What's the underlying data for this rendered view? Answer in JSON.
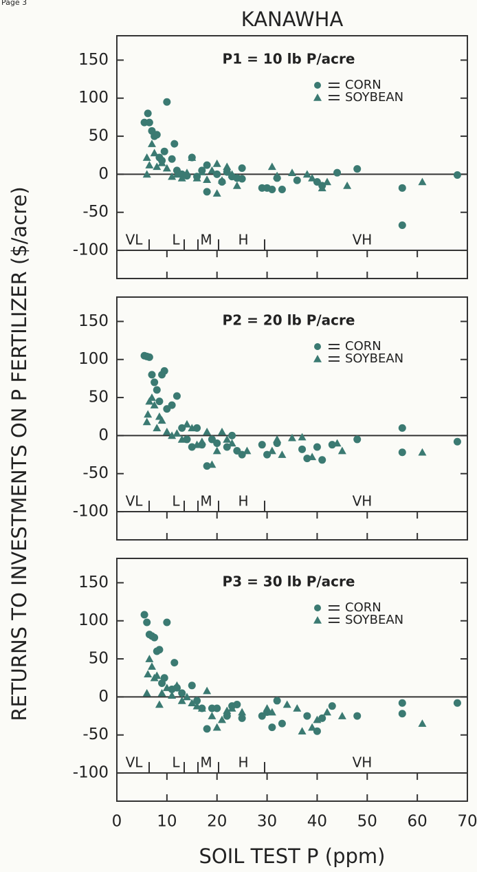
{
  "page_label": "Page 3",
  "chart_data": [
    {
      "type": "scatter",
      "title": "KANAWHA",
      "subtitle": "P1 = 10 lb P/acre",
      "y_label": "RETURNS TO INVESTMENTS ON P FERTILIZER ($/acre)",
      "class_labels": [
        "VL",
        "L",
        "M",
        "H",
        "VH"
      ],
      "xlim": [
        0,
        70
      ],
      "xticks": [
        0,
        10,
        20,
        30,
        40,
        50,
        60,
        70
      ],
      "ylim": [
        -137,
        182
      ],
      "yticks": [
        -100,
        -50,
        0,
        50,
        100,
        150
      ],
      "series": [
        {
          "name": "CORN",
          "marker": "circle",
          "color": "#3b7a72",
          "x": [
            5.5,
            6.2,
            6.5,
            7,
            7.5,
            8,
            8.5,
            9,
            9.5,
            10,
            11,
            11.5,
            12,
            13,
            14,
            15,
            16,
            17,
            18,
            18,
            20,
            21,
            22,
            23,
            24,
            25,
            25,
            29,
            30,
            31,
            32,
            33,
            36,
            40,
            41,
            44,
            48,
            57,
            57,
            68
          ],
          "values": [
            68,
            80,
            68,
            57,
            50,
            52,
            22,
            18,
            30,
            95,
            20,
            40,
            5,
            0,
            -2,
            22,
            -3,
            5,
            -23,
            12,
            0,
            -10,
            3,
            -3,
            -5,
            8,
            -6,
            -18,
            -18,
            -20,
            -5,
            -20,
            -8,
            -10,
            -15,
            2,
            7,
            -18,
            -67,
            -1
          ]
        },
        {
          "name": "SOYBEAN",
          "marker": "triangle",
          "color": "#3b7a72",
          "x": [
            6,
            6,
            6.5,
            7,
            7.5,
            8,
            9,
            10,
            11,
            12,
            13,
            14,
            15,
            16,
            17,
            18,
            19,
            20,
            20,
            21,
            22,
            23,
            24,
            31,
            32,
            35,
            38,
            39,
            41,
            42,
            46,
            61
          ],
          "values": [
            0,
            22,
            12,
            40,
            28,
            10,
            15,
            8,
            -3,
            0,
            -5,
            2,
            22,
            -5,
            3,
            -7,
            5,
            -25,
            14,
            -8,
            10,
            0,
            -15,
            10,
            -2,
            2,
            0,
            -5,
            -18,
            -10,
            -15,
            -10
          ]
        }
      ]
    },
    {
      "type": "scatter",
      "subtitle": "P2 = 20 lb P/acre",
      "class_labels": [
        "VL",
        "L",
        "M",
        "H",
        "VH"
      ],
      "xlim": [
        0,
        70
      ],
      "xticks": [
        0,
        10,
        20,
        30,
        40,
        50,
        60,
        70
      ],
      "ylim": [
        -137,
        182
      ],
      "yticks": [
        -100,
        -50,
        0,
        50,
        100,
        150
      ],
      "series": [
        {
          "name": "CORN",
          "marker": "circle",
          "color": "#3b7a72",
          "x": [
            5.5,
            6,
            6.5,
            7,
            7.5,
            8,
            8.5,
            9,
            9.5,
            10,
            11,
            12,
            13,
            14,
            15,
            16,
            17,
            18,
            19,
            20,
            22,
            23,
            24,
            25,
            29,
            30,
            32,
            37,
            38,
            40,
            41,
            43,
            48,
            57,
            57,
            68
          ],
          "values": [
            105,
            104,
            103,
            80,
            70,
            60,
            45,
            80,
            85,
            35,
            40,
            52,
            10,
            -5,
            -15,
            10,
            -12,
            -40,
            -5,
            -10,
            -15,
            0,
            -20,
            -25,
            -12,
            -25,
            -10,
            -18,
            -30,
            -15,
            -32,
            -12,
            -5,
            10,
            -22,
            -8
          ]
        },
        {
          "name": "SOYBEAN",
          "marker": "triangle",
          "color": "#3b7a72",
          "x": [
            6,
            6.2,
            6.5,
            7,
            7.5,
            8,
            8.5,
            9,
            10,
            11,
            12,
            13,
            14,
            15,
            16,
            17,
            18,
            19,
            20,
            21,
            22,
            23,
            26,
            31,
            32,
            33,
            35,
            37,
            39,
            44,
            45,
            61
          ],
          "values": [
            18,
            28,
            45,
            50,
            40,
            10,
            25,
            20,
            5,
            0,
            3,
            -5,
            15,
            10,
            -12,
            -8,
            5,
            -38,
            -20,
            5,
            -5,
            -10,
            -20,
            -20,
            -5,
            -25,
            -3,
            -2,
            -28,
            -10,
            -20,
            -22
          ]
        }
      ]
    },
    {
      "type": "scatter",
      "subtitle": "P3 = 30 lb P/acre",
      "x_label": "SOIL TEST P (ppm)",
      "class_labels": [
        "VL",
        "L",
        "M",
        "H",
        "VH"
      ],
      "xlim": [
        0,
        70
      ],
      "xticks": [
        0,
        10,
        20,
        30,
        40,
        50,
        60,
        70
      ],
      "ylim": [
        -137,
        182
      ],
      "yticks": [
        -100,
        -50,
        0,
        50,
        100,
        150
      ],
      "series": [
        {
          "name": "CORN",
          "marker": "circle",
          "color": "#3b7a72",
          "x": [
            5.5,
            6,
            6.5,
            7,
            7.5,
            8,
            8.5,
            9,
            9.5,
            10,
            11,
            11.5,
            12,
            13,
            15,
            16,
            17,
            18,
            19,
            20,
            22,
            23,
            24,
            25,
            29,
            30,
            31,
            32,
            33,
            38,
            40,
            41,
            43,
            48,
            57,
            57,
            68
          ],
          "values": [
            108,
            98,
            82,
            80,
            78,
            60,
            62,
            18,
            25,
            98,
            10,
            45,
            12,
            5,
            15,
            -5,
            -15,
            -42,
            -15,
            -15,
            -25,
            -12,
            -10,
            -28,
            -25,
            -20,
            -40,
            -5,
            -35,
            -25,
            -45,
            -28,
            -12,
            -25,
            -8,
            -22,
            -8
          ]
        },
        {
          "name": "SOYBEAN",
          "marker": "triangle",
          "color": "#3b7a72",
          "x": [
            6,
            6.2,
            6.5,
            7,
            7.5,
            8,
            8.5,
            9,
            10,
            11,
            12,
            13,
            14,
            15,
            16,
            17,
            18,
            19,
            20,
            21,
            22,
            23,
            25,
            30,
            31,
            34,
            36,
            37,
            39,
            40,
            42,
            45,
            61
          ],
          "values": [
            5,
            30,
            50,
            40,
            25,
            28,
            -10,
            5,
            12,
            2,
            15,
            -5,
            0,
            -8,
            -12,
            -15,
            8,
            -25,
            -40,
            -30,
            -18,
            -15,
            -20,
            -15,
            -20,
            -10,
            -15,
            -45,
            -40,
            -30,
            -20,
            -25,
            -35
          ]
        }
      ]
    }
  ]
}
